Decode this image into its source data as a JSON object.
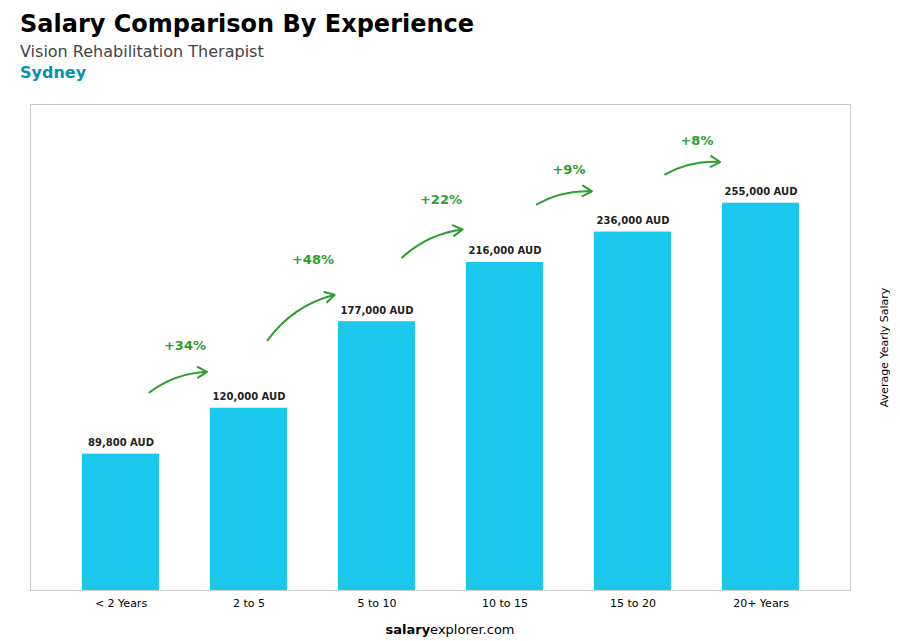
{
  "chart_data": {
    "type": "bar",
    "title": "Salary Comparison By Experience",
    "subtitle": [
      "Vision Rehabilitation Therapist",
      "Sydney"
    ],
    "ylabel": "Average Yearly Salary",
    "footer": [
      "salary",
      "explorer.com"
    ],
    "categories": [
      "< 2 Years",
      "2 to 5",
      "5 to 10",
      "10 to 15",
      "15 to 20",
      "20+ Years"
    ],
    "values": [
      89800,
      120000,
      177000,
      216000,
      236000,
      255000
    ],
    "value_labels": [
      "89,800 AUD",
      "120,000 AUD",
      "177,000 AUD",
      "216,000 AUD",
      "236,000 AUD",
      "255,000 AUD"
    ],
    "data_labels": true,
    "annotations": [
      "+34%",
      "+48%",
      "+22%",
      "+9%",
      "+8%"
    ],
    "color": "#1ac8ed",
    "ylim": [
      0,
      320000
    ],
    "tick_labels": "x"
  }
}
